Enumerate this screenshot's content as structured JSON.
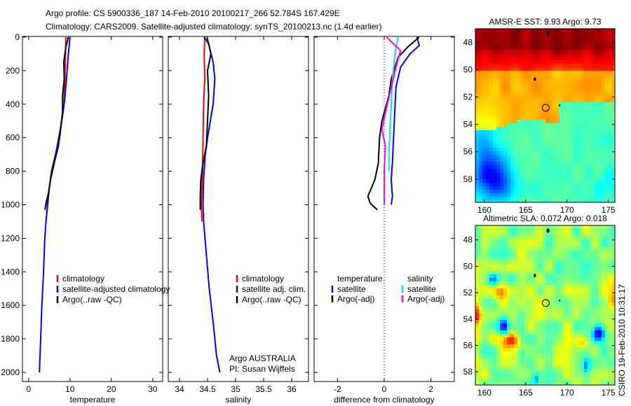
{
  "title_line1": "Argo profile: CS 5900336_187 14-Feb-2010 20100217_266 52.784S 167.429E",
  "title_line2": "Climatology: CARS2009. Satellite-adjusted climatology: synTS_20100213.nc (1.4d earlier)",
  "credit_line1": "Argo AUSTRALIA",
  "credit_line2": "PI: Susan Wijffels",
  "timestamp": "CSIRO 19-Feb-2010 10:31:17",
  "colors": {
    "climatology": "#ff0000",
    "satellite": "#0000ff",
    "argo": "#000000",
    "sal_satellite": "#00e5e5",
    "sal_argo": "#ff00ff"
  },
  "chart_data": [
    {
      "type": "line",
      "id": "temperature",
      "xlabel": "temperature",
      "ylabel": "",
      "xlim": [
        -1.5,
        32.4
      ],
      "ylim": [
        0,
        2060
      ],
      "y_reversed": true,
      "xticks": [
        0,
        10,
        20,
        30
      ],
      "yticks": [
        0,
        200,
        400,
        600,
        800,
        1000,
        1200,
        1400,
        1600,
        1800,
        2000
      ],
      "legend": [
        "climatology",
        "satellite-adjusted climatology",
        "Argo(..raw -QC)"
      ],
      "series": [
        {
          "name": "climatology",
          "color": "#ff0000",
          "points": [
            [
              9.0,
              0
            ],
            [
              8.9,
              100
            ],
            [
              8.7,
              300
            ],
            [
              8.5,
              400
            ],
            [
              8.0,
              500
            ],
            [
              7.5,
              600
            ],
            [
              6.5,
              700
            ],
            [
              5.5,
              800
            ],
            [
              5.0,
              900
            ],
            [
              4.5,
              1000
            ],
            [
              4.2,
              1100
            ]
          ]
        },
        {
          "name": "satellite-adjusted climatology",
          "color": "#0000ff",
          "points": [
            [
              10.0,
              0
            ],
            [
              9.6,
              100
            ],
            [
              9.3,
              200
            ],
            [
              9.0,
              300
            ],
            [
              8.6,
              400
            ],
            [
              8.0,
              500
            ],
            [
              7.3,
              600
            ],
            [
              6.5,
              700
            ],
            [
              5.6,
              800
            ],
            [
              5.0,
              900
            ],
            [
              4.6,
              1000
            ],
            [
              4.2,
              1100
            ],
            [
              3.9,
              1200
            ],
            [
              3.6,
              1400
            ],
            [
              3.2,
              1600
            ],
            [
              2.9,
              1800
            ],
            [
              2.6,
              2000
            ]
          ]
        },
        {
          "name": "Argo(..raw -QC)",
          "color": "#000000",
          "points": [
            [
              9.6,
              0
            ],
            [
              9.0,
              60
            ],
            [
              8.5,
              150
            ],
            [
              8.6,
              250
            ],
            [
              8.2,
              350
            ],
            [
              8.2,
              450
            ],
            [
              7.7,
              550
            ],
            [
              7.2,
              650
            ],
            [
              6.2,
              750
            ],
            [
              5.3,
              850
            ],
            [
              4.8,
              930
            ],
            [
              4.3,
              980
            ],
            [
              3.9,
              1030
            ]
          ]
        }
      ]
    },
    {
      "type": "line",
      "id": "salinity",
      "xlabel": "salinity",
      "xlim": [
        33.8,
        36.3
      ],
      "ylim": [
        0,
        2060
      ],
      "y_reversed": true,
      "xticks": [
        34,
        34.5,
        35,
        35.5,
        36
      ],
      "legend": [
        "climatology",
        "satellite adj. clim.",
        "Argo(..raw -QC)"
      ],
      "series": [
        {
          "name": "climatology",
          "color": "#ff0000",
          "points": [
            [
              34.45,
              0
            ],
            [
              34.44,
              100
            ],
            [
              34.45,
              250
            ],
            [
              34.43,
              400
            ],
            [
              34.42,
              600
            ],
            [
              34.41,
              800
            ],
            [
              34.4,
              900
            ],
            [
              34.39,
              1000
            ],
            [
              34.4,
              1100
            ]
          ]
        },
        {
          "name": "satellite adj. clim.",
          "color": "#0000ff",
          "points": [
            [
              34.49,
              0
            ],
            [
              34.55,
              80
            ],
            [
              34.6,
              150
            ],
            [
              34.63,
              250
            ],
            [
              34.6,
              400
            ],
            [
              34.55,
              500
            ],
            [
              34.5,
              600
            ],
            [
              34.46,
              700
            ],
            [
              34.43,
              850
            ],
            [
              34.42,
              1000
            ],
            [
              34.43,
              1100
            ],
            [
              34.48,
              1300
            ],
            [
              34.53,
              1500
            ],
            [
              34.6,
              1700
            ],
            [
              34.66,
              1900
            ],
            [
              34.72,
              2000
            ]
          ]
        },
        {
          "name": "Argo(..raw -QC)",
          "color": "#000000",
          "points": [
            [
              34.44,
              0
            ],
            [
              34.52,
              40
            ],
            [
              34.56,
              100
            ],
            [
              34.5,
              200
            ],
            [
              34.52,
              350
            ],
            [
              34.5,
              500
            ],
            [
              34.48,
              650
            ],
            [
              34.42,
              750
            ],
            [
              34.38,
              850
            ],
            [
              34.37,
              950
            ],
            [
              34.37,
              1030
            ]
          ]
        }
      ]
    },
    {
      "type": "line",
      "id": "difference",
      "xlabel": "difference from climatology",
      "xlim": [
        -3,
        3
      ],
      "ylim": [
        0,
        2060
      ],
      "y_reversed": true,
      "xticks": [
        -2,
        0,
        2
      ],
      "legend_groups": [
        {
          "title": "temperature",
          "items": [
            "satellite",
            "Argo(-adj)"
          ]
        },
        {
          "title": "salinity",
          "items": [
            "satellite",
            "Argo(-adj)"
          ]
        }
      ],
      "series": [
        {
          "name": "temperature satellite",
          "color": "#0000ff",
          "points": [
            [
              1.4,
              0
            ],
            [
              1.5,
              50
            ],
            [
              1.1,
              100
            ],
            [
              0.7,
              180
            ],
            [
              0.5,
              300
            ],
            [
              0.45,
              450
            ],
            [
              0.4,
              600
            ],
            [
              0.35,
              750
            ],
            [
              0.3,
              850
            ],
            [
              0.35,
              950
            ],
            [
              0.3,
              1000
            ]
          ]
        },
        {
          "name": "temperature Argo(-adj)",
          "color": "#000000",
          "points": [
            [
              1.5,
              0
            ],
            [
              1.0,
              60
            ],
            [
              0.6,
              120
            ],
            [
              0.3,
              250
            ],
            [
              0.2,
              350
            ],
            [
              -0.1,
              500
            ],
            [
              -0.2,
              600
            ],
            [
              -0.25,
              750
            ],
            [
              -0.4,
              850
            ],
            [
              -0.7,
              950
            ],
            [
              -0.6,
              990
            ],
            [
              -0.3,
              1030
            ]
          ]
        },
        {
          "name": "salinity satellite",
          "color": "#00e5e5",
          "points": [
            [
              0.6,
              0
            ],
            [
              0.5,
              60
            ],
            [
              0.45,
              120
            ],
            [
              0.35,
              250
            ],
            [
              0.3,
              400
            ],
            [
              0.25,
              550
            ],
            [
              0.2,
              700
            ],
            [
              0.2,
              800
            ]
          ]
        },
        {
          "name": "salinity Argo(-adj)",
          "color": "#ff00ff",
          "points": [
            [
              0.1,
              0
            ],
            [
              0.7,
              80
            ],
            [
              0.5,
              180
            ],
            [
              0.3,
              300
            ],
            [
              0.05,
              450
            ],
            [
              -0.1,
              550
            ],
            [
              0.05,
              650
            ],
            [
              0,
              800
            ],
            [
              0,
              1000
            ]
          ]
        }
      ]
    },
    {
      "type": "heatmap",
      "id": "sst_map",
      "title": "AMSR-E SST: 9.93 Argo: 9.73",
      "xlim": [
        158.9,
        175.8
      ],
      "ylim": [
        -59.7,
        -47.0
      ],
      "xticks": [
        160,
        165,
        170,
        175
      ],
      "yticks": [
        -48,
        -50,
        -52,
        -54,
        -56,
        -58
      ],
      "ytick_labels": [
        "48",
        "50",
        "52",
        "54",
        "56",
        "58"
      ],
      "argo_position": [
        167.429,
        -52.784
      ]
    },
    {
      "type": "heatmap",
      "id": "sla_map",
      "title": "Altimetric SLA: 0.072 Argo: 0.018",
      "xlim": [
        158.9,
        175.8
      ],
      "ylim": [
        -59.0,
        -46.9
      ],
      "xticks": [
        160,
        165,
        170,
        175
      ],
      "yticks": [
        -48,
        -50,
        -52,
        -54,
        -56,
        -58
      ],
      "ytick_labels": [
        "48",
        "50",
        "52",
        "54",
        "56",
        "58"
      ],
      "argo_position": [
        167.429,
        -52.784
      ]
    }
  ]
}
